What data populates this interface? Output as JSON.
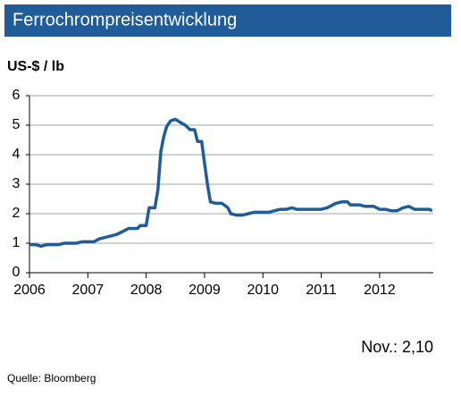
{
  "chart_data": {
    "type": "line",
    "title": "Ferrochrompreisentwicklung",
    "y_label": "US-$ / lb",
    "annotation": "Nov.: 2,10",
    "source": "Quelle:  Bloomberg",
    "x": [
      2006.0,
      2006.1,
      2006.2,
      2006.3,
      2006.5,
      2006.6,
      2006.8,
      2006.9,
      2007.1,
      2007.2,
      2007.4,
      2007.5,
      2007.6,
      2007.7,
      2007.85,
      2007.9,
      2008.0,
      2008.05,
      2008.15,
      2008.2,
      2008.25,
      2008.3,
      2008.35,
      2008.42,
      2008.5,
      2008.58,
      2008.67,
      2008.75,
      2008.83,
      2008.88,
      2008.95,
      2009.0,
      2009.05,
      2009.1,
      2009.2,
      2009.3,
      2009.4,
      2009.45,
      2009.55,
      2009.65,
      2009.75,
      2009.85,
      2010.1,
      2010.2,
      2010.3,
      2010.4,
      2010.5,
      2010.58,
      2010.7,
      2011.0,
      2011.1,
      2011.2,
      2011.25,
      2011.35,
      2011.45,
      2011.5,
      2011.65,
      2011.75,
      2011.9,
      2012.0,
      2012.1,
      2012.2,
      2012.3,
      2012.4,
      2012.5,
      2012.6,
      2012.75,
      2012.85,
      2012.9
    ],
    "series": [
      {
        "name": "Ferrochrom",
        "color": "#1f5c99",
        "values": [
          0.95,
          0.95,
          0.9,
          0.95,
          0.95,
          1.0,
          1.0,
          1.05,
          1.05,
          1.15,
          1.25,
          1.3,
          1.4,
          1.5,
          1.5,
          1.6,
          1.6,
          2.2,
          2.2,
          2.8,
          4.1,
          4.6,
          4.95,
          5.15,
          5.2,
          5.1,
          5.0,
          4.85,
          4.85,
          4.45,
          4.45,
          3.7,
          3.0,
          2.4,
          2.35,
          2.35,
          2.2,
          2.0,
          1.95,
          1.95,
          2.0,
          2.05,
          2.05,
          2.1,
          2.15,
          2.15,
          2.2,
          2.15,
          2.15,
          2.15,
          2.2,
          2.3,
          2.35,
          2.4,
          2.4,
          2.3,
          2.3,
          2.25,
          2.25,
          2.15,
          2.15,
          2.1,
          2.1,
          2.2,
          2.25,
          2.15,
          2.15,
          2.15,
          2.1
        ]
      }
    ],
    "xlim": [
      2006,
      2012.92
    ],
    "xticks": [
      2006,
      2007,
      2008,
      2009,
      2010,
      2011,
      2012
    ],
    "ylim": [
      0,
      6
    ],
    "yticks": [
      0,
      1,
      2,
      3,
      4,
      5,
      6
    ],
    "grid": true
  }
}
